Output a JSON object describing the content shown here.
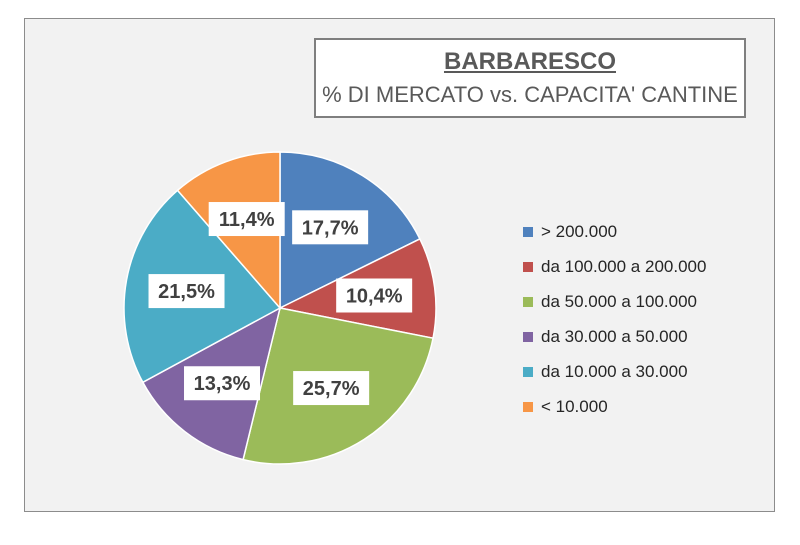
{
  "chart_data": {
    "type": "pie",
    "title": "BARBARESCO",
    "subtitle": "% DI MERCATO vs. CAPACITA' CANTINE",
    "legend_position": "right",
    "slices": [
      {
        "label": "> 200.000",
        "value": 17.7,
        "display": "17,7%",
        "color": "#4f81bd"
      },
      {
        "label": "da 100.000 a 200.000",
        "value": 10.4,
        "display": "10,4%",
        "color": "#c0504d"
      },
      {
        "label": "da 50.000 a 100.000",
        "value": 25.7,
        "display": "25,7%",
        "color": "#9bbb59"
      },
      {
        "label": "da 30.000 a 50.000",
        "value": 13.3,
        "display": "13,3%",
        "color": "#8064a2"
      },
      {
        "label": "da 10.000 a 30.000",
        "value": 21.5,
        "display": "21,5%",
        "color": "#4bacc6"
      },
      {
        "label": "< 10.000",
        "value": 11.4,
        "display": "11,4%",
        "color": "#f79646"
      }
    ]
  }
}
